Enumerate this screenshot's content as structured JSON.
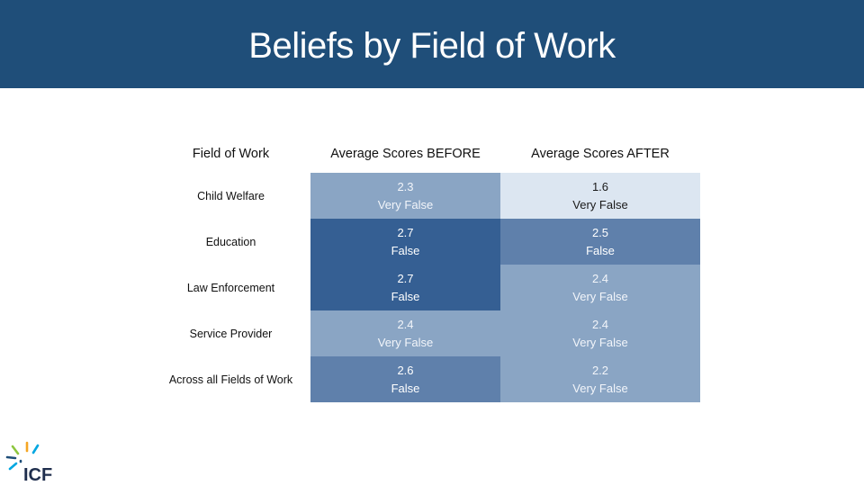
{
  "header": {
    "title": "Beliefs by Field of Work"
  },
  "table": {
    "columns": [
      "Field of Work",
      "Average Scores BEFORE",
      "Average Scores AFTER"
    ],
    "rows": [
      {
        "field": "Child Welfare",
        "before": {
          "score": "2.3",
          "label": "Very False",
          "color": "#8aa5c4"
        },
        "after": {
          "score": "1.6",
          "label": "Very False",
          "color": "#dce6f1"
        }
      },
      {
        "field": "Education",
        "before": {
          "score": "2.7",
          "label": "False",
          "color": "#355f93"
        },
        "after": {
          "score": "2.5",
          "label": "False",
          "color": "#5f80ab"
        }
      },
      {
        "field": "Law Enforcement",
        "before": {
          "score": "2.7",
          "label": "False",
          "color": "#355f93"
        },
        "after": {
          "score": "2.4",
          "label": "Very False",
          "color": "#8aa5c4"
        }
      },
      {
        "field": "Service Provider",
        "before": {
          "score": "2.4",
          "label": "Very False",
          "color": "#8aa5c4"
        },
        "after": {
          "score": "2.4",
          "label": "Very False",
          "color": "#8aa5c4"
        }
      },
      {
        "field": "Across all Fields of Work",
        "before": {
          "score": "2.6",
          "label": "False",
          "color": "#5f80ab"
        },
        "after": {
          "score": "2.2",
          "label": "Very False",
          "color": "#8aa5c4"
        }
      }
    ]
  },
  "logo": {
    "text": "ICF",
    "icon": "icf-burst-icon"
  },
  "colors": {
    "header": "#1f4e79"
  }
}
